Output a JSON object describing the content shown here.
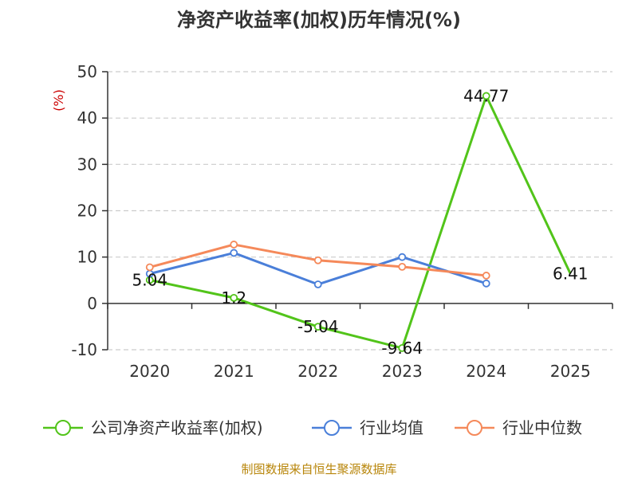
{
  "chart_data": {
    "type": "line",
    "title": "净资产收益率(加权)历年情况(%)",
    "ylabel": "(%)",
    "ylim": [
      -10,
      50
    ],
    "yticks": [
      -10,
      0,
      10,
      20,
      30,
      40,
      50
    ],
    "categories": [
      "2020",
      "2021",
      "2022",
      "2023",
      "2024",
      "2025"
    ],
    "series": [
      {
        "name": "公司净资产收益率(加权)",
        "color": "#52c41a",
        "values": [
          5.04,
          1.2,
          -5.04,
          -9.64,
          44.77,
          6.41
        ],
        "labels": [
          "5.04",
          "1.2",
          "-5.04",
          "-9.64",
          "44.77",
          "6.41"
        ],
        "markers": [
          true,
          true,
          true,
          true,
          true,
          false
        ]
      },
      {
        "name": "行业均值",
        "color": "#4a7fd9",
        "values": [
          6.4,
          10.9,
          4.1,
          10.0,
          4.3,
          null
        ]
      },
      {
        "name": "行业中位数",
        "color": "#f5895a",
        "values": [
          7.8,
          12.7,
          9.3,
          7.9,
          6.0,
          null
        ]
      }
    ],
    "source": "制图数据来自恒生聚源数据库"
  },
  "colors": {
    "grid": "#cccccc",
    "axis": "#333333",
    "unit": "#cc0000"
  }
}
